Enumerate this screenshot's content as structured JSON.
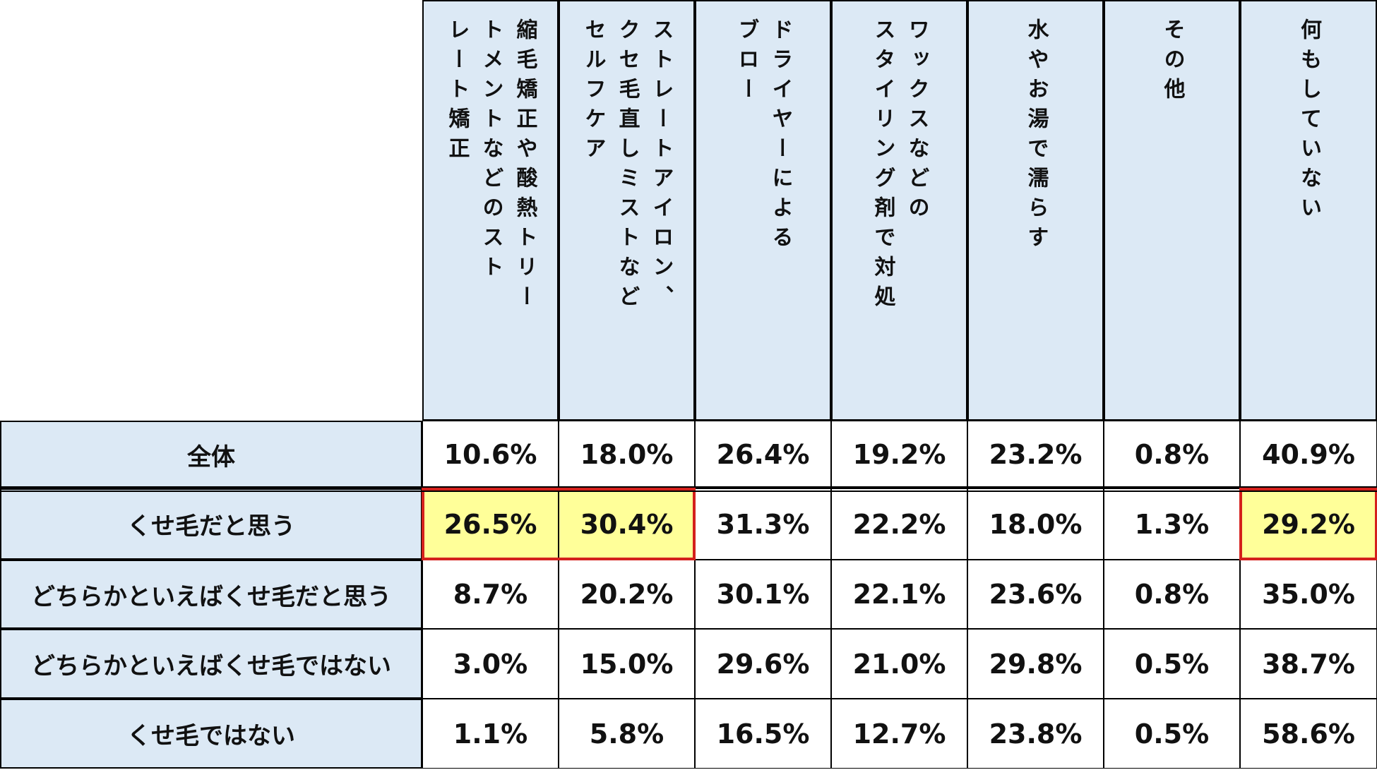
{
  "chart_data": {
    "type": "table",
    "columns": [
      "縮毛矯正や酸熱トリー\nトメントなどのスト\nレート矯正",
      "ストレートアイロン、\nクセ毛直しミストなど\nセルフケア",
      "ドライヤーによる\nブロー",
      "ワックスなどの\nスタイリング剤で対処",
      "水やお湯で濡らす",
      "その他",
      "何もしていない"
    ],
    "rows": [
      {
        "label": "全体",
        "values": [
          "10.6%",
          "18.0%",
          "26.4%",
          "19.2%",
          "23.2%",
          "0.8%",
          "40.9%"
        ],
        "highlight": []
      },
      {
        "label": "くせ毛だと思う",
        "values": [
          "26.5%",
          "30.4%",
          "31.3%",
          "22.2%",
          "18.0%",
          "1.3%",
          "29.2%"
        ],
        "highlight": [
          0,
          1,
          6
        ]
      },
      {
        "label": "どちらかといえばくせ毛だと思う",
        "values": [
          "8.7%",
          "20.2%",
          "30.1%",
          "22.1%",
          "23.6%",
          "0.8%",
          "35.0%"
        ],
        "highlight": []
      },
      {
        "label": "どちらかといえばくせ毛ではない",
        "values": [
          "3.0%",
          "15.0%",
          "29.6%",
          "21.0%",
          "29.8%",
          "0.5%",
          "38.7%"
        ],
        "highlight": []
      },
      {
        "label": "くせ毛ではない",
        "values": [
          "1.1%",
          "5.8%",
          "16.5%",
          "12.7%",
          "23.8%",
          "0.5%",
          "58.6%"
        ],
        "highlight": []
      }
    ],
    "colors": {
      "header_bg": "#dce9f5",
      "highlight_bg": "#ffff99",
      "highlight_border": "#d4201c"
    }
  }
}
